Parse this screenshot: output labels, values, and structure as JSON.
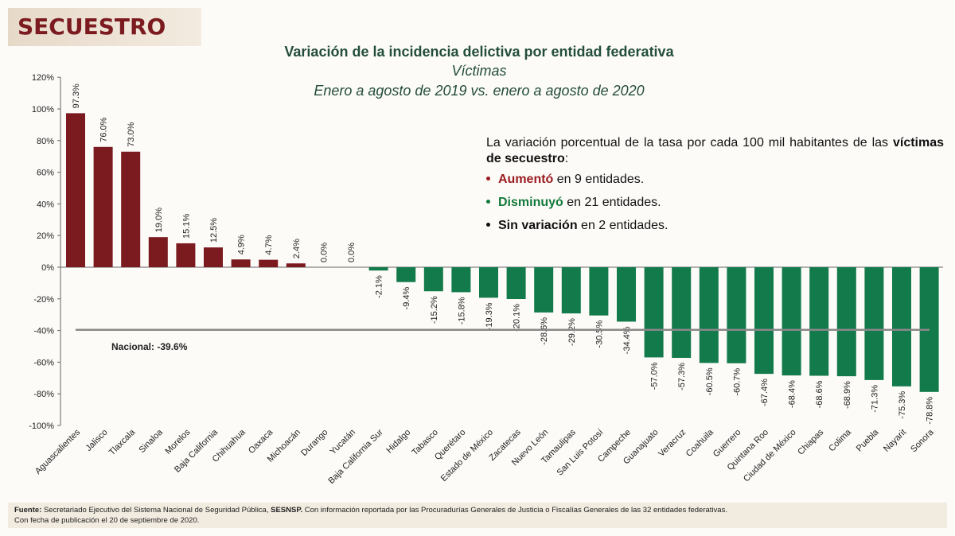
{
  "header": {
    "section": "SECUESTRO"
  },
  "title": {
    "line1": "Variación de la incidencia delictiva por entidad federativa",
    "line2": "Víctimas",
    "line3": "Enero a agosto de 2019 vs. enero a agosto de 2020"
  },
  "note": {
    "intro": "La variación porcentual de la tasa por cada 100 mil habitantes de las",
    "intro_bold": "víctimas de secuestro",
    "intro_end": ":",
    "items": [
      {
        "bold": "Aumentó",
        "rest": " en 9 entidades.",
        "color": "#9b1b1f"
      },
      {
        "bold": "Disminuyó",
        "rest": " en 21 entidades.",
        "color": "#137a3c"
      },
      {
        "bold": "Sin variación",
        "rest": " en 2 entidades.",
        "color": "#111111"
      }
    ]
  },
  "chart_data": {
    "type": "bar",
    "categories": [
      "Aguascalientes",
      "Jalisco",
      "Tlaxcala",
      "Sinaloa",
      "Morelos",
      "Baja California",
      "Chihuahua",
      "Oaxaca",
      "Michoacán",
      "Durango",
      "Yucatán",
      "Baja California Sur",
      "Hidalgo",
      "Tabasco",
      "Querétaro",
      "Estado de México",
      "Zacatecas",
      "Nuevo León",
      "Tamaulipas",
      "San Luis Potosí",
      "Campeche",
      "Guanajuato",
      "Veracruz",
      "Coahuila",
      "Guerrero",
      "Quintana Roo",
      "Ciudad de México",
      "Chiapas",
      "Colima",
      "Puebla",
      "Nayarit",
      "Sonora"
    ],
    "values": [
      97.3,
      76.0,
      73.0,
      19.0,
      15.1,
      12.5,
      4.9,
      4.7,
      2.4,
      0.0,
      0.0,
      -2.1,
      -9.4,
      -15.2,
      -15.8,
      -19.3,
      -20.1,
      -28.6,
      -29.2,
      -30.5,
      -34.4,
      -57.0,
      -57.3,
      -60.5,
      -60.7,
      -67.4,
      -68.4,
      -68.6,
      -68.9,
      -71.3,
      -75.3,
      -78.8
    ],
    "data_labels": [
      "97.3%",
      "76.0%",
      "73.0%",
      "19.0%",
      "15.1%",
      "12.5%",
      "4.9%",
      "4.7%",
      "2.4%",
      "0.0%",
      "0.0%",
      "-2.1%",
      "-9.4%",
      "-15.2%",
      "-15.8%",
      "-19.3%",
      "-20.1%",
      "-28.6%",
      "-29.2%",
      "-30.5%",
      "-34.4%",
      "-57.0%",
      "-57.3%",
      "-60.5%",
      "-60.7%",
      "-67.4%",
      "-68.4%",
      "-68.6%",
      "-68.9%",
      "-71.3%",
      "-75.3%",
      "-78.8%"
    ],
    "ylim": [
      -100,
      120
    ],
    "yticks": [
      "-100%",
      "-80%",
      "-60%",
      "-40%",
      "-20%",
      "0%",
      "20%",
      "40%",
      "60%",
      "80%",
      "100%",
      "120%"
    ],
    "reference_line": {
      "label": "Nacional: -39.6%",
      "value": -39.6
    },
    "colors": {
      "positive": "#7b1a1f",
      "negative": "#137a4c",
      "reference": "#888888"
    },
    "grid": false,
    "legend": "none"
  },
  "footer": {
    "source_label": "Fuente:",
    "source_text": " Secretariado Ejecutivo del Sistema Nacional de Seguridad Pública, ",
    "source_bold": "SESNSP.",
    "source_rest": " Con información reportada por las Procuradurías Generales de Justicia o Fiscalías Generales de las 32 entidades federativas.",
    "date": "Con fecha de publicación el 20 de septiembre de 2020."
  }
}
